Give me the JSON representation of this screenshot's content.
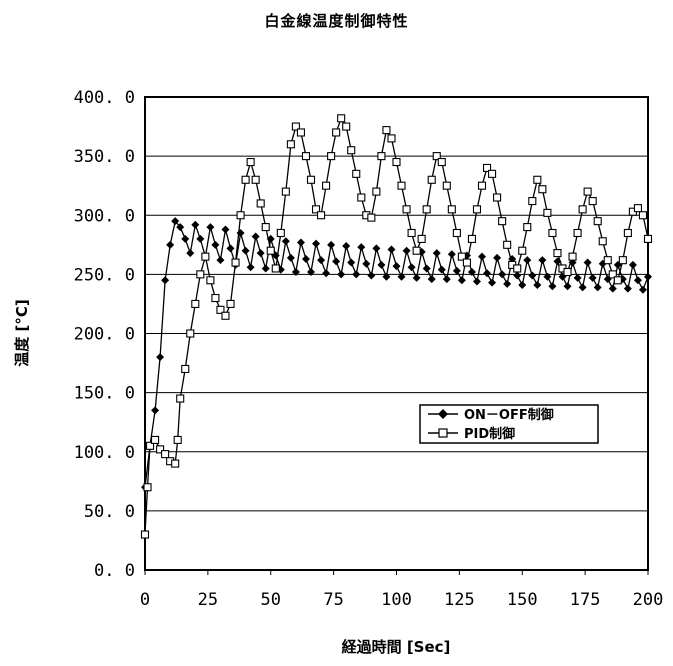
{
  "chart_data": {
    "type": "line",
    "title": "白金線温度制御特性",
    "xlabel": "経過時間 [Sec]",
    "ylabel": "温度 [°C]",
    "xlim": [
      0,
      200
    ],
    "ylim": [
      0,
      400
    ],
    "x_ticks": [
      "0",
      "25",
      "50",
      "75",
      "100",
      "125",
      "150",
      "175",
      "200"
    ],
    "y_ticks": [
      "0. 0",
      "50. 0",
      "100. 0",
      "150. 0",
      "200. 0",
      "250. 0",
      "300. 0",
      "350. 0",
      "400. 0"
    ],
    "grid": "horizontal",
    "legend_position": "right-middle",
    "series": [
      {
        "name": "ON－OFF制御",
        "marker": "diamond",
        "color": "#000000",
        "points": [
          [
            0,
            70
          ],
          [
            2,
            105
          ],
          [
            4,
            135
          ],
          [
            6,
            180
          ],
          [
            8,
            245
          ],
          [
            10,
            275
          ],
          [
            12,
            295
          ],
          [
            14,
            290
          ],
          [
            16,
            280
          ],
          [
            18,
            268
          ],
          [
            20,
            292
          ],
          [
            22,
            280
          ],
          [
            24,
            265
          ],
          [
            26,
            290
          ],
          [
            28,
            275
          ],
          [
            30,
            262
          ],
          [
            32,
            288
          ],
          [
            34,
            272
          ],
          [
            36,
            258
          ],
          [
            38,
            285
          ],
          [
            40,
            270
          ],
          [
            42,
            256
          ],
          [
            44,
            282
          ],
          [
            46,
            268
          ],
          [
            48,
            255
          ],
          [
            50,
            280
          ],
          [
            52,
            266
          ],
          [
            54,
            254
          ],
          [
            56,
            278
          ],
          [
            58,
            264
          ],
          [
            60,
            252
          ],
          [
            62,
            277
          ],
          [
            64,
            263
          ],
          [
            66,
            252
          ],
          [
            68,
            276
          ],
          [
            70,
            262
          ],
          [
            72,
            251
          ],
          [
            74,
            275
          ],
          [
            76,
            261
          ],
          [
            78,
            250
          ],
          [
            80,
            274
          ],
          [
            82,
            260
          ],
          [
            84,
            250
          ],
          [
            86,
            273
          ],
          [
            88,
            259
          ],
          [
            90,
            249
          ],
          [
            92,
            272
          ],
          [
            94,
            258
          ],
          [
            96,
            248
          ],
          [
            98,
            271
          ],
          [
            100,
            257
          ],
          [
            102,
            248
          ],
          [
            104,
            270
          ],
          [
            106,
            256
          ],
          [
            108,
            247
          ],
          [
            110,
            269
          ],
          [
            112,
            255
          ],
          [
            114,
            246
          ],
          [
            116,
            268
          ],
          [
            118,
            254
          ],
          [
            120,
            246
          ],
          [
            122,
            267
          ],
          [
            124,
            253
          ],
          [
            126,
            245
          ],
          [
            128,
            266
          ],
          [
            130,
            252
          ],
          [
            132,
            244
          ],
          [
            134,
            265
          ],
          [
            136,
            251
          ],
          [
            138,
            243
          ],
          [
            140,
            264
          ],
          [
            142,
            250
          ],
          [
            144,
            242
          ],
          [
            146,
            263
          ],
          [
            148,
            249
          ],
          [
            150,
            241
          ],
          [
            152,
            262
          ],
          [
            154,
            249
          ],
          [
            156,
            241
          ],
          [
            158,
            262
          ],
          [
            160,
            248
          ],
          [
            162,
            240
          ],
          [
            164,
            261
          ],
          [
            166,
            248
          ],
          [
            168,
            240
          ],
          [
            170,
            260
          ],
          [
            172,
            247
          ],
          [
            174,
            239
          ],
          [
            176,
            260
          ],
          [
            178,
            247
          ],
          [
            180,
            239
          ],
          [
            182,
            259
          ],
          [
            184,
            246
          ],
          [
            186,
            238
          ],
          [
            188,
            258
          ],
          [
            190,
            246
          ],
          [
            192,
            238
          ],
          [
            194,
            258
          ],
          [
            196,
            245
          ],
          [
            198,
            237
          ],
          [
            200,
            248
          ]
        ]
      },
      {
        "name": "PID制御",
        "marker": "square",
        "color": "#000000",
        "points": [
          [
            0,
            30
          ],
          [
            1,
            70
          ],
          [
            2,
            105
          ],
          [
            4,
            110
          ],
          [
            6,
            102
          ],
          [
            8,
            98
          ],
          [
            10,
            92
          ],
          [
            12,
            90
          ],
          [
            13,
            110
          ],
          [
            14,
            145
          ],
          [
            16,
            170
          ],
          [
            18,
            200
          ],
          [
            20,
            225
          ],
          [
            22,
            250
          ],
          [
            24,
            265
          ],
          [
            26,
            245
          ],
          [
            28,
            230
          ],
          [
            30,
            220
          ],
          [
            32,
            215
          ],
          [
            34,
            225
          ],
          [
            36,
            260
          ],
          [
            38,
            300
          ],
          [
            40,
            330
          ],
          [
            42,
            345
          ],
          [
            44,
            330
          ],
          [
            46,
            310
          ],
          [
            48,
            290
          ],
          [
            50,
            270
          ],
          [
            52,
            255
          ],
          [
            54,
            285
          ],
          [
            56,
            320
          ],
          [
            58,
            360
          ],
          [
            60,
            375
          ],
          [
            62,
            370
          ],
          [
            64,
            350
          ],
          [
            66,
            330
          ],
          [
            68,
            305
          ],
          [
            70,
            300
          ],
          [
            72,
            325
          ],
          [
            74,
            350
          ],
          [
            76,
            370
          ],
          [
            78,
            382
          ],
          [
            80,
            375
          ],
          [
            82,
            355
          ],
          [
            84,
            335
          ],
          [
            86,
            315
          ],
          [
            88,
            300
          ],
          [
            90,
            298
          ],
          [
            92,
            320
          ],
          [
            94,
            350
          ],
          [
            96,
            372
          ],
          [
            98,
            365
          ],
          [
            100,
            345
          ],
          [
            102,
            325
          ],
          [
            104,
            305
          ],
          [
            106,
            285
          ],
          [
            108,
            270
          ],
          [
            110,
            280
          ],
          [
            112,
            305
          ],
          [
            114,
            330
          ],
          [
            116,
            350
          ],
          [
            118,
            345
          ],
          [
            120,
            325
          ],
          [
            122,
            305
          ],
          [
            124,
            285
          ],
          [
            126,
            265
          ],
          [
            128,
            260
          ],
          [
            130,
            280
          ],
          [
            132,
            305
          ],
          [
            134,
            325
          ],
          [
            136,
            340
          ],
          [
            138,
            335
          ],
          [
            140,
            315
          ],
          [
            142,
            295
          ],
          [
            144,
            275
          ],
          [
            146,
            258
          ],
          [
            148,
            255
          ],
          [
            150,
            270
          ],
          [
            152,
            290
          ],
          [
            154,
            312
          ],
          [
            156,
            330
          ],
          [
            158,
            322
          ],
          [
            160,
            302
          ],
          [
            162,
            285
          ],
          [
            164,
            268
          ],
          [
            166,
            255
          ],
          [
            168,
            252
          ],
          [
            170,
            265
          ],
          [
            172,
            285
          ],
          [
            174,
            305
          ],
          [
            176,
            320
          ],
          [
            178,
            312
          ],
          [
            180,
            295
          ],
          [
            182,
            278
          ],
          [
            184,
            262
          ],
          [
            186,
            250
          ],
          [
            188,
            245
          ],
          [
            190,
            262
          ],
          [
            192,
            285
          ],
          [
            194,
            303
          ],
          [
            196,
            306
          ],
          [
            198,
            300
          ],
          [
            200,
            280
          ]
        ]
      }
    ]
  }
}
